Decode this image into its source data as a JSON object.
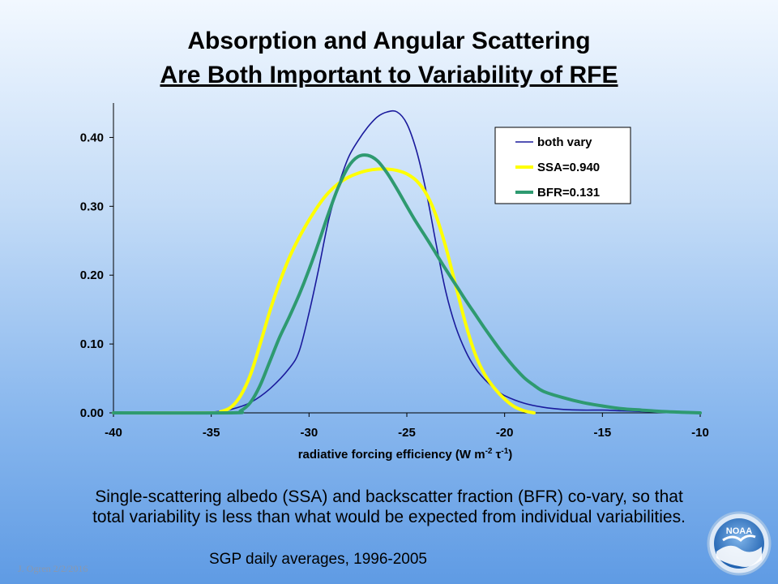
{
  "slide": {
    "title_line1": "Absorption and Angular Scattering",
    "title_line2": " Are Both Important to Variability of RFE",
    "caption_line1": "Single-scattering albedo (SSA) and backscatter fraction (BFR) co-vary, so that",
    "caption_line2": "total variability is less than what would be expected from individual variabilities.",
    "source_note": "SGP daily averages, 1996-2005",
    "author": "J. Ogren  2/2/2016",
    "logo_text": "NOAA"
  },
  "chart_data": {
    "type": "line",
    "title": "",
    "xlabel": "radiative forcing efficiency (W m-2 τ-1)",
    "ylabel": "",
    "xlim": [
      -40,
      -10
    ],
    "ylim": [
      0,
      0.45
    ],
    "x_ticks": [
      -40,
      -35,
      -30,
      -25,
      -20,
      -15,
      -10
    ],
    "x_tick_labels": [
      "-40",
      "-35",
      "-30",
      "-25",
      "-20",
      "-15",
      "-10"
    ],
    "y_ticks": [
      0,
      0.1,
      0.2,
      0.3,
      0.4
    ],
    "y_tick_labels": [
      "0.00",
      "0.10",
      "0.20",
      "0.30",
      "0.40"
    ],
    "grid": false,
    "legend_position": "top-right",
    "series": [
      {
        "name": "both vary",
        "color": "#1a1a9c",
        "points": [
          [
            -40,
            0
          ],
          [
            -36,
            0
          ],
          [
            -35,
            0.001
          ],
          [
            -34,
            0.005
          ],
          [
            -33,
            0.015
          ],
          [
            -32,
            0.035
          ],
          [
            -31,
            0.065
          ],
          [
            -30.5,
            0.09
          ],
          [
            -30,
            0.145
          ],
          [
            -29.5,
            0.21
          ],
          [
            -29,
            0.28
          ],
          [
            -28.5,
            0.33
          ],
          [
            -28,
            0.37
          ],
          [
            -27.5,
            0.395
          ],
          [
            -27,
            0.415
          ],
          [
            -26.5,
            0.43
          ],
          [
            -26,
            0.437
          ],
          [
            -25.5,
            0.437
          ],
          [
            -25,
            0.42
          ],
          [
            -24.5,
            0.38
          ],
          [
            -24,
            0.32
          ],
          [
            -23.5,
            0.245
          ],
          [
            -23,
            0.175
          ],
          [
            -22.5,
            0.125
          ],
          [
            -22,
            0.09
          ],
          [
            -21.5,
            0.065
          ],
          [
            -21,
            0.048
          ],
          [
            -20.5,
            0.035
          ],
          [
            -20,
            0.025
          ],
          [
            -19,
            0.014
          ],
          [
            -18,
            0.008
          ],
          [
            -17,
            0.005
          ],
          [
            -16,
            0.004
          ],
          [
            -15,
            0.004
          ],
          [
            -14,
            0.003
          ],
          [
            -13,
            0.002
          ],
          [
            -12,
            0.001
          ],
          [
            -10,
            0
          ]
        ]
      },
      {
        "name": "SSA=0.940",
        "color": "#ffff00",
        "points": [
          [
            -40,
            0
          ],
          [
            -35,
            0
          ],
          [
            -34.5,
            0.002
          ],
          [
            -34,
            0.008
          ],
          [
            -33.5,
            0.025
          ],
          [
            -33,
            0.055
          ],
          [
            -32.5,
            0.1
          ],
          [
            -32,
            0.148
          ],
          [
            -31.5,
            0.19
          ],
          [
            -31,
            0.226
          ],
          [
            -30.5,
            0.255
          ],
          [
            -30,
            0.28
          ],
          [
            -29.5,
            0.302
          ],
          [
            -29,
            0.32
          ],
          [
            -28.5,
            0.333
          ],
          [
            -28,
            0.342
          ],
          [
            -27.5,
            0.348
          ],
          [
            -27,
            0.352
          ],
          [
            -26.5,
            0.354
          ],
          [
            -26,
            0.354
          ],
          [
            -25.5,
            0.352
          ],
          [
            -25,
            0.347
          ],
          [
            -24.5,
            0.337
          ],
          [
            -24,
            0.318
          ],
          [
            -23.5,
            0.286
          ],
          [
            -23,
            0.24
          ],
          [
            -22.5,
            0.185
          ],
          [
            -22,
            0.13
          ],
          [
            -21.5,
            0.085
          ],
          [
            -21,
            0.055
          ],
          [
            -20.5,
            0.035
          ],
          [
            -20,
            0.02
          ],
          [
            -19.5,
            0.009
          ],
          [
            -19,
            0.003
          ],
          [
            -18.5,
            0
          ]
        ]
      },
      {
        "name": "BFR=0.131",
        "color": "#2e9a70",
        "points": [
          [
            -40,
            0
          ],
          [
            -34,
            0
          ],
          [
            -33.5,
            0.003
          ],
          [
            -33,
            0.015
          ],
          [
            -32.5,
            0.04
          ],
          [
            -32,
            0.075
          ],
          [
            -31.5,
            0.11
          ],
          [
            -31,
            0.14
          ],
          [
            -30.5,
            0.172
          ],
          [
            -30,
            0.208
          ],
          [
            -29.5,
            0.248
          ],
          [
            -29,
            0.29
          ],
          [
            -28.5,
            0.328
          ],
          [
            -28,
            0.357
          ],
          [
            -27.5,
            0.372
          ],
          [
            -27,
            0.374
          ],
          [
            -26.5,
            0.366
          ],
          [
            -26,
            0.348
          ],
          [
            -25.5,
            0.325
          ],
          [
            -25,
            0.3
          ],
          [
            -24.5,
            0.276
          ],
          [
            -24,
            0.254
          ],
          [
            -23.5,
            0.231
          ],
          [
            -23,
            0.208
          ],
          [
            -22.5,
            0.186
          ],
          [
            -22,
            0.164
          ],
          [
            -21.5,
            0.143
          ],
          [
            -21,
            0.122
          ],
          [
            -20.5,
            0.102
          ],
          [
            -20,
            0.083
          ],
          [
            -19.5,
            0.066
          ],
          [
            -19,
            0.051
          ],
          [
            -18.5,
            0.04
          ],
          [
            -18,
            0.031
          ],
          [
            -17,
            0.022
          ],
          [
            -16,
            0.015
          ],
          [
            -15,
            0.01
          ],
          [
            -14,
            0.006
          ],
          [
            -13,
            0.004
          ],
          [
            -12,
            0.002
          ],
          [
            -11,
            0.001
          ],
          [
            -10,
            0
          ]
        ]
      }
    ]
  }
}
